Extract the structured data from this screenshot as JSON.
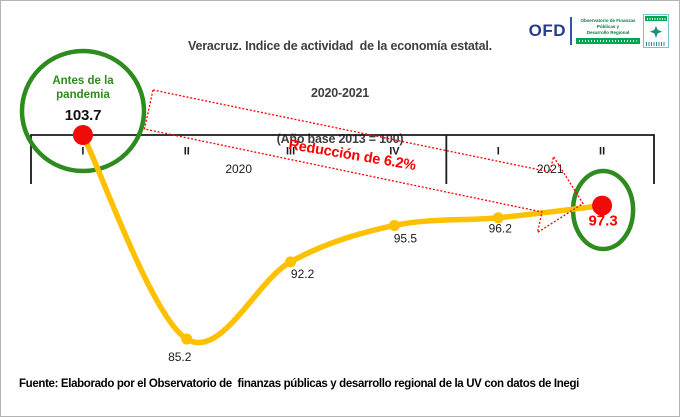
{
  "title": {
    "line1": "Veracruz. Indice de actividad  de la economía estatal.",
    "line2": "2020-2021",
    "line3": "(Año base 2013 = 100)"
  },
  "logo": {
    "abbr": "OFD",
    "org_line1": "Observatorio de Finanzas Públicas y",
    "org_line2": "Desarrollo Regional"
  },
  "annotations": {
    "pre_pandemic_line1": "Antes de la",
    "pre_pandemic_line2": "pandemia",
    "reduction": "Reducción de 6.2%"
  },
  "footer": "Fuente: Elaborado por el Observatorio de  finanzas públicas y desarrollo regional de la UV con datos de Inegi",
  "chart_data": {
    "type": "line",
    "title": "Veracruz. Indice de actividad de la economía estatal. 2020-2021 (Año base 2013 = 100)",
    "categories": [
      "I",
      "II",
      "III",
      "IV",
      "I",
      "II"
    ],
    "year_groups": [
      {
        "label": "2020",
        "quarters": 4
      },
      {
        "label": "2021",
        "quarters": 2
      }
    ],
    "values": [
      103.7,
      85.2,
      92.2,
      95.5,
      96.2,
      97.3
    ],
    "reduction_pct": 6.2,
    "axis_at_value": 103.7,
    "grid": false,
    "legend": false,
    "colors": {
      "line": "#FFC000",
      "marker": "#FFC000",
      "highlight_marker": "#F00A0A",
      "highlight_circle": "#2E8B1E",
      "arrow": "#FF0000",
      "axis": "#1a1a1a",
      "label": "#1a1a1a",
      "highlight_label": "#FF0000"
    }
  }
}
